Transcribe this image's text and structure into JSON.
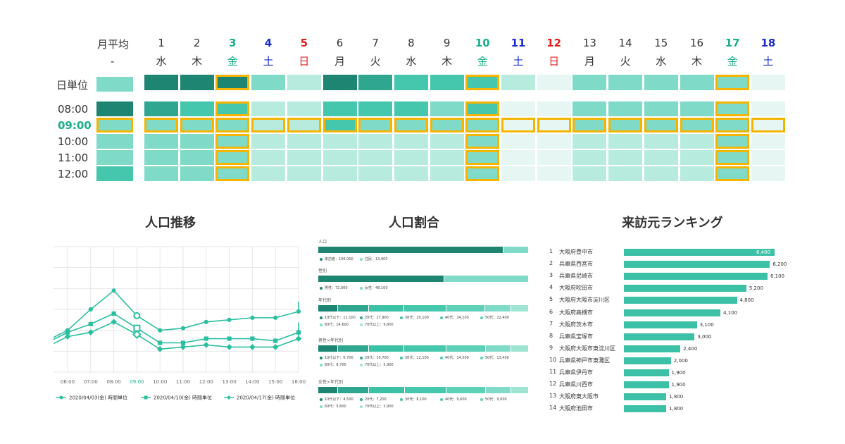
{
  "heatmap": {
    "month_avg_label": "月平均",
    "month_avg_dash": "-",
    "day_unit_label": "日単位",
    "days": [
      {
        "num": "1",
        "dow": "水",
        "type": "weekday",
        "sel": false
      },
      {
        "num": "2",
        "dow": "木",
        "type": "weekday",
        "sel": false
      },
      {
        "num": "3",
        "dow": "金",
        "type": "fri",
        "sel": true
      },
      {
        "num": "4",
        "dow": "土",
        "type": "sat",
        "sel": false
      },
      {
        "num": "5",
        "dow": "日",
        "type": "sun",
        "sel": false
      },
      {
        "num": "6",
        "dow": "月",
        "type": "weekday",
        "sel": false
      },
      {
        "num": "7",
        "dow": "火",
        "type": "weekday",
        "sel": false
      },
      {
        "num": "8",
        "dow": "水",
        "type": "weekday",
        "sel": false
      },
      {
        "num": "9",
        "dow": "木",
        "type": "weekday",
        "sel": false
      },
      {
        "num": "10",
        "dow": "金",
        "type": "fri",
        "sel": true
      },
      {
        "num": "11",
        "dow": "土",
        "type": "sat",
        "sel": false
      },
      {
        "num": "12",
        "dow": "日",
        "type": "sun",
        "sel": false
      },
      {
        "num": "13",
        "dow": "月",
        "type": "weekday",
        "sel": false
      },
      {
        "num": "14",
        "dow": "火",
        "type": "weekday",
        "sel": false
      },
      {
        "num": "15",
        "dow": "水",
        "type": "weekday",
        "sel": false
      },
      {
        "num": "16",
        "dow": "木",
        "type": "weekday",
        "sel": false
      },
      {
        "num": "17",
        "dow": "金",
        "type": "fri",
        "sel": true
      },
      {
        "num": "18",
        "dow": "土",
        "type": "sat",
        "sel": false
      }
    ],
    "hours": [
      "08:00",
      "09:00",
      "10:00",
      "11:00",
      "12:00"
    ],
    "selected_hour": "09:00",
    "day_unit_levels": [
      5,
      5,
      5,
      2,
      1,
      5,
      4,
      3,
      3,
      3,
      1,
      0,
      2,
      2,
      2,
      2,
      2,
      0
    ],
    "day_unit_avg_level": 2,
    "hour_levels": [
      [
        4,
        3,
        3,
        1,
        1,
        3,
        3,
        3,
        2,
        3,
        0,
        0,
        2,
        2,
        2,
        2,
        2,
        0
      ],
      [
        2,
        2,
        2,
        1,
        1,
        3,
        2,
        2,
        2,
        2,
        0,
        0,
        2,
        2,
        2,
        2,
        2,
        0
      ],
      [
        2,
        2,
        2,
        1,
        1,
        1,
        1,
        1,
        1,
        2,
        0,
        0,
        1,
        1,
        1,
        1,
        2,
        0
      ],
      [
        2,
        2,
        2,
        1,
        1,
        1,
        1,
        1,
        1,
        2,
        0,
        0,
        1,
        1,
        1,
        1,
        2,
        0
      ],
      [
        2,
        2,
        2,
        1,
        1,
        1,
        1,
        1,
        1,
        2,
        0,
        0,
        1,
        1,
        1,
        1,
        2,
        0
      ]
    ],
    "hour_avg_levels": [
      5,
      2,
      2,
      2,
      3
    ],
    "level_colors": [
      "#e6f7f3",
      "#b6ebde",
      "#7fdbc7",
      "#45c7ae",
      "#2ea690",
      "#1e8572"
    ],
    "highlight_color": "#f5b400",
    "fri_color": "#1aaf8b",
    "sat_color": "#1a2dc8",
    "sun_color": "#e02020",
    "weekday_color": "#333333"
  },
  "trend": {
    "title": "人口推移",
    "chart_data": {
      "type": "line",
      "x": [
        "06:00",
        "07:00",
        "08:00",
        "09:00",
        "10:00",
        "11:00",
        "12:00",
        "13:00",
        "14:00",
        "15:00",
        "16:00"
      ],
      "highlight_x": "09:00",
      "series": [
        {
          "name": "2020/04/03(金) 時間単位",
          "marker": "circle",
          "values": [
            50,
            60,
            69,
            57,
            50,
            51,
            54,
            55,
            56,
            56,
            59
          ]
        },
        {
          "name": "2020/04/10(金) 時間単位",
          "marker": "square",
          "values": [
            49,
            53,
            58,
            51,
            44,
            44,
            46,
            46,
            46,
            45,
            49
          ]
        },
        {
          "name": "2020/04/17(金) 時間単位",
          "marker": "diamond",
          "values": [
            47,
            49,
            54,
            48,
            41,
            42,
            43,
            42,
            42,
            42,
            46
          ]
        }
      ],
      "ylim": [
        30,
        90
      ],
      "grid": true,
      "legend": "bottom"
    }
  },
  "ratio": {
    "title": "人口割合",
    "groups": [
      {
        "label": "人口",
        "segments": [
          {
            "value": 106000,
            "color": "#1e8572"
          },
          {
            "value": 13900,
            "color": "#7fdbc7"
          }
        ],
        "legend": [
          {
            "text": "来訪者：106,000",
            "color": "#1e8572"
          },
          {
            "text": "住民：13,900",
            "color": "#7fdbc7"
          }
        ]
      },
      {
        "label": "性別",
        "segments": [
          {
            "value": 72000,
            "color": "#1e8572"
          },
          {
            "value": 48100,
            "color": "#7fdbc7"
          }
        ],
        "legend": [
          {
            "text": "男性：72,000",
            "color": "#1e8572"
          },
          {
            "text": "女性：48,100",
            "color": "#7fdbc7"
          }
        ]
      },
      {
        "label": "年代別",
        "segments": [
          {
            "value": 11100,
            "color": "#1e8572"
          },
          {
            "value": 17900,
            "color": "#2ea690"
          },
          {
            "value": 20100,
            "color": "#3cc0a6"
          },
          {
            "value": 24100,
            "color": "#45c7ae"
          },
          {
            "value": 22400,
            "color": "#5dd0b8"
          },
          {
            "value": 14600,
            "color": "#7fdbc7"
          },
          {
            "value": 9800,
            "color": "#9fe3d2"
          }
        ],
        "legend": [
          {
            "text": "10代以下：11,100",
            "color": "#1e8572"
          },
          {
            "text": "20代：17,900",
            "color": "#2ea690"
          },
          {
            "text": "30代：20,100",
            "color": "#3cc0a6"
          },
          {
            "text": "40代：24,100",
            "color": "#45c7ae"
          },
          {
            "text": "50代：22,400",
            "color": "#5dd0b8"
          },
          {
            "text": "60代：14,600",
            "color": "#7fdbc7"
          },
          {
            "text": "70代以上：9,800",
            "color": "#9fe3d2"
          }
        ]
      },
      {
        "label": "男性×年代別",
        "segments": [
          {
            "value": 6700,
            "color": "#1e8572"
          },
          {
            "value": 10700,
            "color": "#2ea690"
          },
          {
            "value": 12100,
            "color": "#3cc0a6"
          },
          {
            "value": 14500,
            "color": "#45c7ae"
          },
          {
            "value": 13400,
            "color": "#5dd0b8"
          },
          {
            "value": 8700,
            "color": "#7fdbc7"
          },
          {
            "value": 5900,
            "color": "#9fe3d2"
          }
        ],
        "legend": [
          {
            "text": "10代以下：6,700",
            "color": "#1e8572"
          },
          {
            "text": "20代：10,700",
            "color": "#2ea690"
          },
          {
            "text": "30代：12,100",
            "color": "#3cc0a6"
          },
          {
            "text": "40代：14,500",
            "color": "#45c7ae"
          },
          {
            "text": "50代：13,400",
            "color": "#5dd0b8"
          },
          {
            "text": "60代：8,700",
            "color": "#7fdbc7"
          },
          {
            "text": "70代以上：5,900",
            "color": "#9fe3d2"
          }
        ]
      },
      {
        "label": "女性×年代別",
        "segments": [
          {
            "value": 4500,
            "color": "#1e8572"
          },
          {
            "value": 7200,
            "color": "#2ea690"
          },
          {
            "value": 8100,
            "color": "#3cc0a6"
          },
          {
            "value": 9600,
            "color": "#45c7ae"
          },
          {
            "value": 9000,
            "color": "#5dd0b8"
          },
          {
            "value": 5800,
            "color": "#7fdbc7"
          },
          {
            "value": 3900,
            "color": "#9fe3d2"
          }
        ],
        "legend": [
          {
            "text": "10代以下：4,500",
            "color": "#1e8572"
          },
          {
            "text": "20代：7,200",
            "color": "#2ea690"
          },
          {
            "text": "30代：8,100",
            "color": "#3cc0a6"
          },
          {
            "text": "40代：9,600",
            "color": "#45c7ae"
          },
          {
            "text": "50代：9,000",
            "color": "#5dd0b8"
          },
          {
            "text": "60代：5,800",
            "color": "#7fdbc7"
          },
          {
            "text": "70代以上：3,900",
            "color": "#9fe3d2"
          }
        ]
      }
    ]
  },
  "ranking": {
    "title": "来訪元ランキング",
    "bar_color": "#3cc0a6",
    "items": [
      {
        "rank": "1",
        "name": "大阪府豊中市",
        "value": 6400,
        "label": "6,400"
      },
      {
        "rank": "2",
        "name": "兵庫県西宮市",
        "value": 6200,
        "label": "6,200"
      },
      {
        "rank": "3",
        "name": "兵庫県尼崎市",
        "value": 6100,
        "label": "6,100"
      },
      {
        "rank": "4",
        "name": "大阪府吹田市",
        "value": 5200,
        "label": "5,200"
      },
      {
        "rank": "5",
        "name": "大阪府大阪市淀川区",
        "value": 4800,
        "label": "4,800"
      },
      {
        "rank": "6",
        "name": "大阪府高槻市",
        "value": 4100,
        "label": "4,100"
      },
      {
        "rank": "7",
        "name": "大阪府茨木市",
        "value": 3100,
        "label": "3,100"
      },
      {
        "rank": "8",
        "name": "兵庫県宝塚市",
        "value": 3000,
        "label": "3,000"
      },
      {
        "rank": "9",
        "name": "大阪府大阪市東淀川区",
        "value": 2400,
        "label": "2,400"
      },
      {
        "rank": "10",
        "name": "兵庫県神戸市東灘区",
        "value": 2000,
        "label": "2,000"
      },
      {
        "rank": "11",
        "name": "兵庫県伊丹市",
        "value": 1900,
        "label": "1,900"
      },
      {
        "rank": "12",
        "name": "兵庫県川西市",
        "value": 1900,
        "label": "1,900"
      },
      {
        "rank": "13",
        "name": "大阪府東大阪市",
        "value": 1800,
        "label": "1,800"
      },
      {
        "rank": "14",
        "name": "大阪府池田市",
        "value": 1800,
        "label": "1,800"
      }
    ]
  }
}
